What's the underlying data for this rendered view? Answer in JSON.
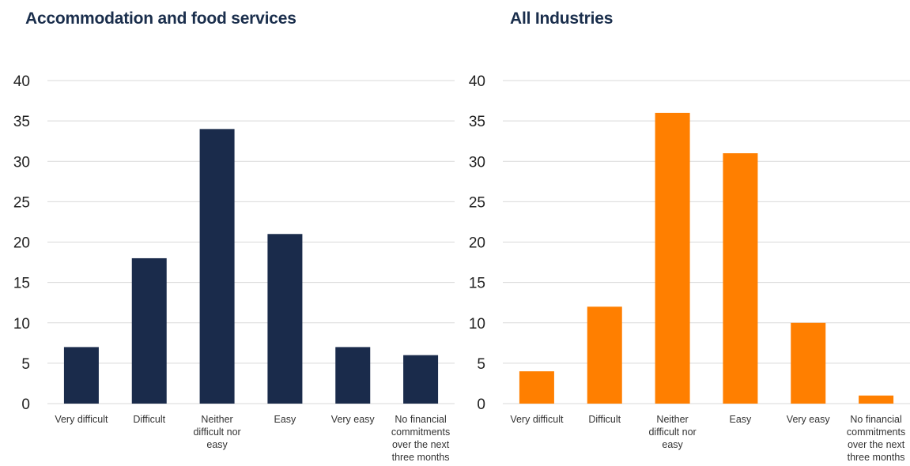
{
  "colors": {
    "left_bar": "#1a2b4b",
    "right_bar": "#ff7f00",
    "grid": "#d9d9d9",
    "title": "#1a2e4c"
  },
  "chart_data": [
    {
      "type": "bar",
      "title": "Accommodation and food services",
      "categories": [
        "Very difficult",
        "Difficult",
        "Neither difficult nor easy",
        "Easy",
        "Very easy",
        "No financial commitments over the next three months"
      ],
      "values": [
        7,
        18,
        34,
        21,
        7,
        6
      ],
      "ylim": [
        0,
        40
      ],
      "yticks": [
        0,
        5,
        10,
        15,
        20,
        25,
        30,
        35,
        40
      ],
      "grid": true,
      "legend": "none"
    },
    {
      "type": "bar",
      "title": "All Industries",
      "categories": [
        "Very difficult",
        "Difficult",
        "Neither difficult nor easy",
        "Easy",
        "Very easy",
        "No financial commitments over the next three months"
      ],
      "values": [
        4,
        12,
        36,
        31,
        10,
        1
      ],
      "ylim": [
        0,
        40
      ],
      "yticks": [
        0,
        5,
        10,
        15,
        20,
        25,
        30,
        35,
        40
      ],
      "grid": true,
      "legend": "none"
    }
  ]
}
